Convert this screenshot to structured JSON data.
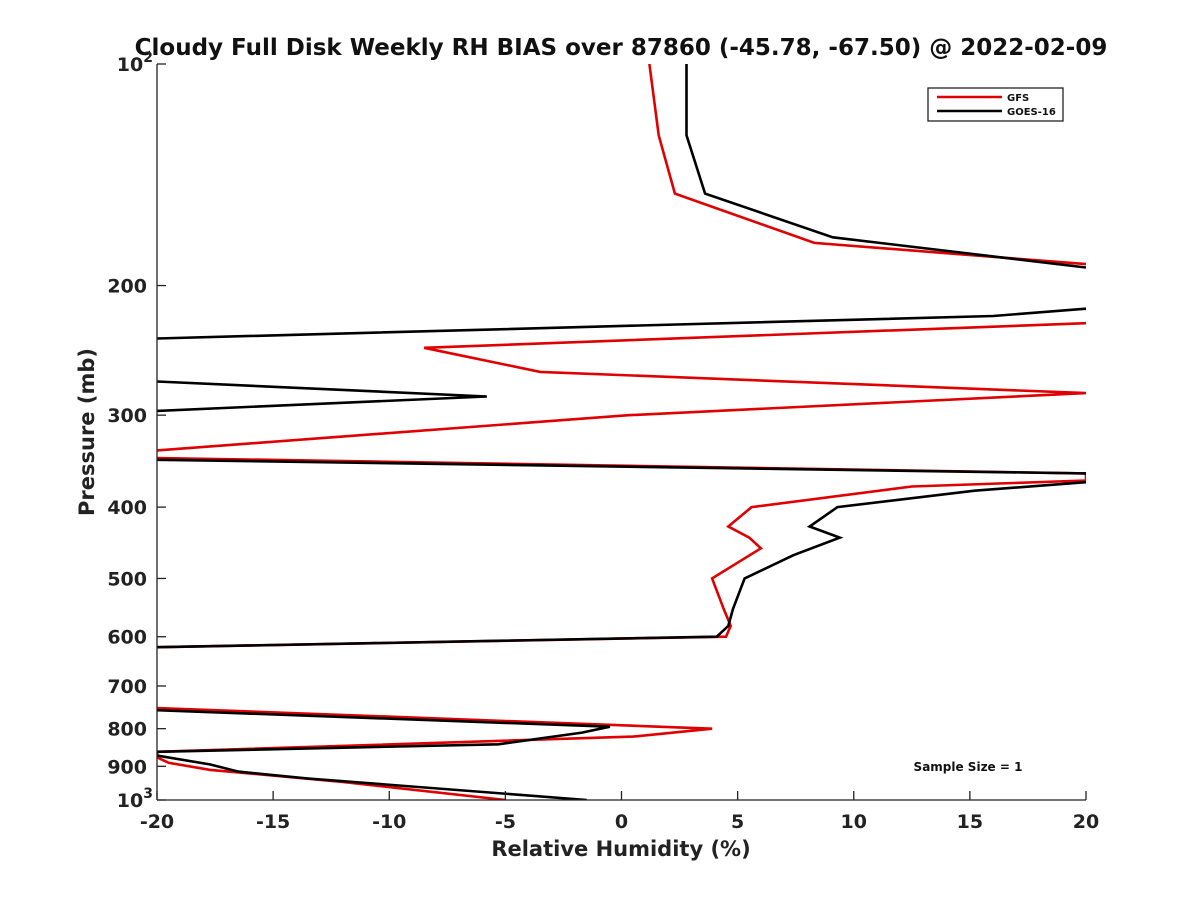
{
  "chart_data": {
    "type": "line",
    "title": "Cloudy Full Disk Weekly RH BIAS over 87860 (-45.78, -67.50) @ 2022-02-09",
    "xlabel": "Relative Humidity (%)",
    "ylabel": "Pressure (mb)",
    "xlim": [
      -20,
      20
    ],
    "ylim": [
      100,
      1000
    ],
    "y_scale": "log",
    "y_reversed": true,
    "x_ticks": [
      {
        "value": -20,
        "label": "-20"
      },
      {
        "value": -15,
        "label": "-15"
      },
      {
        "value": -10,
        "label": "-10"
      },
      {
        "value": -5,
        "label": "-5"
      },
      {
        "value": 0,
        "label": "0"
      },
      {
        "value": 5,
        "label": "5"
      },
      {
        "value": 10,
        "label": "10"
      },
      {
        "value": 15,
        "label": "15"
      },
      {
        "value": 20,
        "label": "20"
      }
    ],
    "y_ticks": [
      {
        "value": 100,
        "label": "10",
        "sup": "2"
      },
      {
        "value": 200,
        "label": "200",
        "sup": ""
      },
      {
        "value": 300,
        "label": "300",
        "sup": ""
      },
      {
        "value": 400,
        "label": "400",
        "sup": ""
      },
      {
        "value": 500,
        "label": "500",
        "sup": ""
      },
      {
        "value": 600,
        "label": "600",
        "sup": ""
      },
      {
        "value": 700,
        "label": "700",
        "sup": ""
      },
      {
        "value": 800,
        "label": "800",
        "sup": ""
      },
      {
        "value": 900,
        "label": "900",
        "sup": ""
      },
      {
        "value": 1000,
        "label": "10",
        "sup": "3"
      }
    ],
    "grid": false,
    "legend_position": "top-right",
    "annotation": "Sample Size = 1",
    "series": [
      {
        "name": "GFS",
        "color": "#e00000",
        "points": [
          [
            1.2,
            100
          ],
          [
            1.6,
            125
          ],
          [
            2.3,
            150
          ],
          [
            8.3,
            175
          ],
          [
            20,
            187
          ],
          null,
          [
            20,
            225
          ],
          [
            -8.5,
            243
          ],
          [
            -3.5,
            262
          ],
          [
            20,
            280
          ],
          [
            0.3,
            300
          ],
          [
            -20,
            335
          ],
          null,
          [
            -20,
            343
          ],
          [
            20,
            360
          ],
          [
            20,
            368
          ],
          [
            12.5,
            375
          ],
          [
            5.6,
            400
          ],
          [
            4.6,
            425
          ],
          [
            5.5,
            440
          ],
          [
            6.0,
            455
          ],
          [
            3.9,
            500
          ],
          [
            4.4,
            550
          ],
          [
            4.7,
            580
          ],
          [
            4.5,
            600
          ],
          [
            -20,
            620
          ],
          null,
          [
            -20,
            750
          ],
          [
            3.9,
            800
          ],
          [
            0.5,
            820
          ],
          [
            -20,
            860
          ],
          [
            -20,
            875
          ],
          [
            -19.5,
            890
          ],
          [
            -17.7,
            910
          ],
          [
            -12,
            945
          ],
          [
            -5,
            1000
          ]
        ]
      },
      {
        "name": "GOES-16",
        "color": "#000000",
        "points": [
          [
            2.8,
            100
          ],
          [
            2.8,
            125
          ],
          [
            3.6,
            150
          ],
          [
            9.1,
            172
          ],
          [
            20,
            189
          ],
          null,
          [
            20,
            215
          ],
          [
            16.0,
            220
          ],
          [
            -20,
            236
          ],
          null,
          [
            -20,
            270
          ],
          [
            -5.8,
            283
          ],
          [
            -20,
            296
          ],
          null,
          [
            -20,
            345
          ],
          [
            20,
            360
          ],
          null,
          [
            20,
            370
          ],
          [
            15.2,
            380
          ],
          [
            9.3,
            400
          ],
          [
            8.1,
            425
          ],
          [
            9.4,
            440
          ],
          [
            7.4,
            465
          ],
          [
            5.3,
            500
          ],
          [
            4.8,
            550
          ],
          [
            4.6,
            580
          ],
          [
            4.1,
            600
          ],
          [
            -20,
            620
          ],
          null,
          [
            -20,
            755
          ],
          [
            -0.5,
            795
          ],
          [
            -1.7,
            810
          ],
          [
            -5.3,
            840
          ],
          [
            -20,
            860
          ],
          [
            -20,
            870
          ],
          [
            -17.7,
            895
          ],
          [
            -16.5,
            915
          ],
          [
            -13.5,
            935
          ],
          [
            -1.5,
            1000
          ]
        ]
      }
    ]
  }
}
